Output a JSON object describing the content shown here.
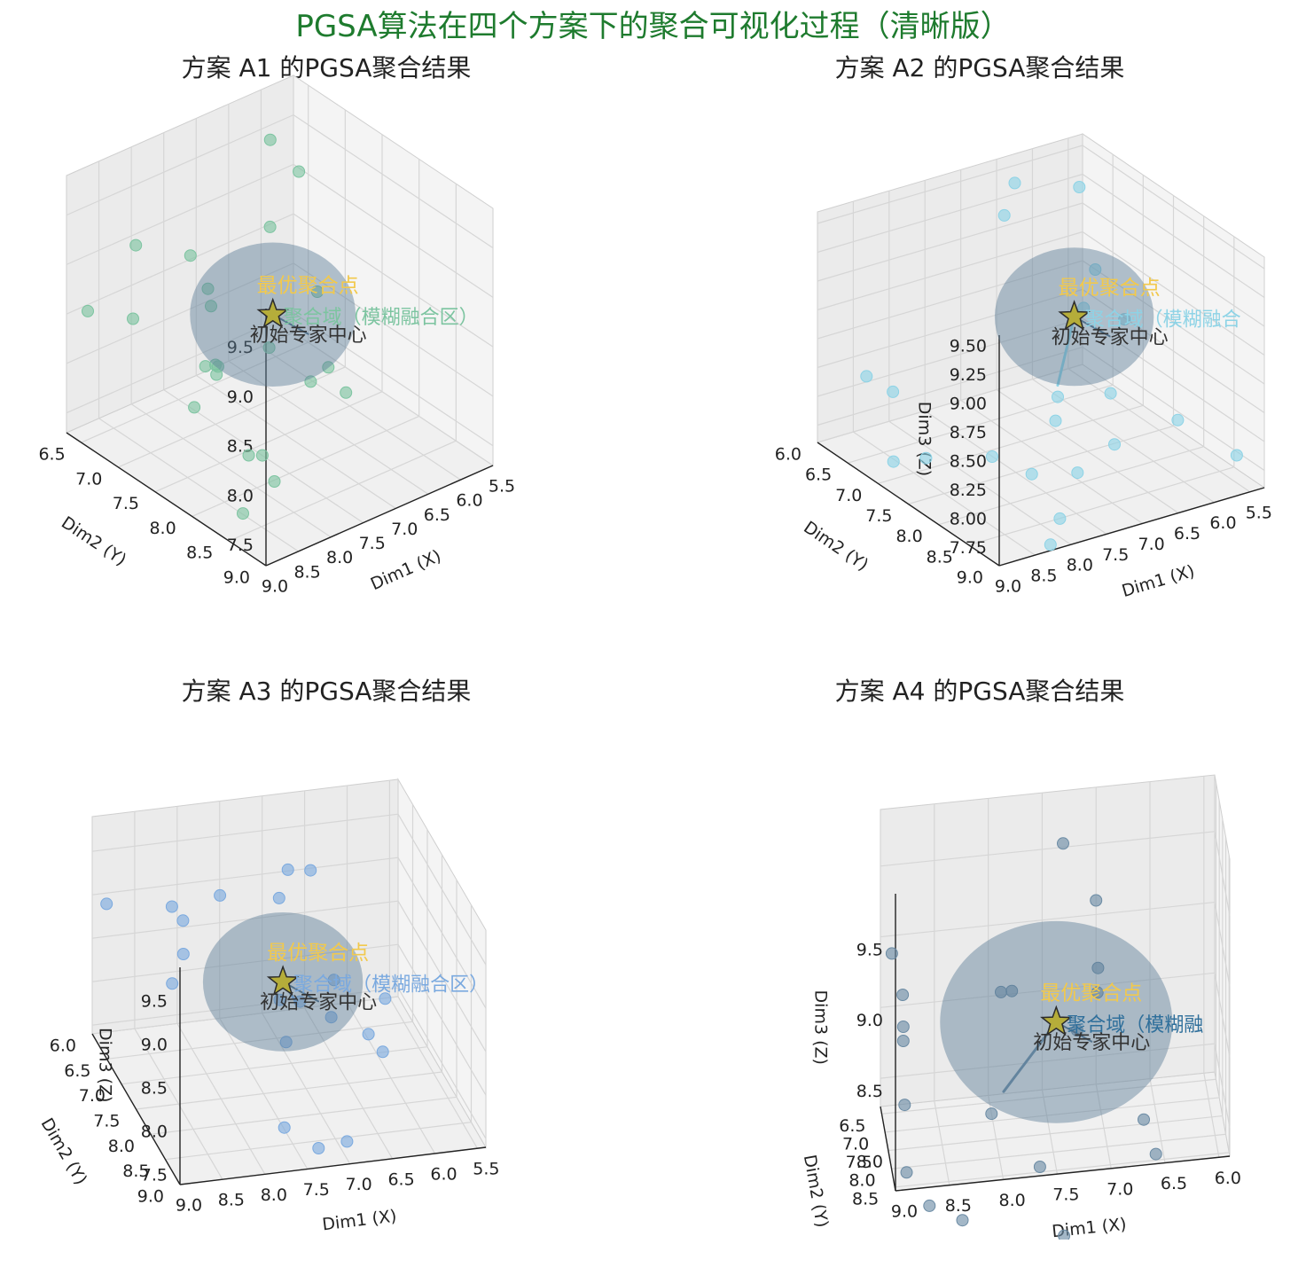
{
  "figure_title": "PGSA算法在四个方案下的聚合可视化过程（清晰版）",
  "chart_data": [
    {
      "type": "scatter",
      "title": "方案 A1 的PGSA聚合结果",
      "xlabel": "Dim1 (X)",
      "ylabel": "Dim2 (Y)",
      "zlabel": "",
      "xlim": [
        5.5,
        9.0
      ],
      "ylim": [
        6.3,
        9.0
      ],
      "zlim": [
        7.3,
        9.9
      ],
      "xticks": [
        "5.5",
        "6.0",
        "6.5",
        "7.0",
        "7.5",
        "8.0",
        "8.5",
        "9.0"
      ],
      "yticks": [
        "6.5",
        "7.0",
        "7.5",
        "8.0",
        "8.5",
        "9.0"
      ],
      "zticks": [
        "7.5",
        "8.0",
        "8.5",
        "9.0",
        "9.5"
      ],
      "color": "#7cc4a0",
      "points": [
        [
          6.2,
          6.6,
          9.6
        ],
        [
          6.1,
          6.9,
          9.4
        ],
        [
          8.5,
          6.8,
          9.3
        ],
        [
          8.0,
          7.1,
          9.2
        ],
        [
          7.0,
          7.3,
          9.3
        ],
        [
          8.3,
          7.6,
          9.2
        ],
        [
          6.5,
          7.5,
          8.6
        ],
        [
          6.9,
          8.0,
          8.2
        ],
        [
          7.4,
          8.2,
          8.3
        ],
        [
          8.6,
          8.0,
          8.7
        ],
        [
          9.0,
          7.2,
          8.9
        ],
        [
          8.6,
          8.6,
          8.1
        ],
        [
          8.3,
          8.5,
          7.7
        ],
        [
          8.9,
          8.6,
          7.6
        ],
        [
          6.8,
          6.4,
          7.3
        ],
        [
          7.6,
          6.8,
          7.4
        ],
        [
          7.2,
          6.6,
          7.6
        ],
        [
          7.9,
          7.8,
          7.5
        ],
        [
          6.9,
          7.2,
          8.0
        ],
        [
          7.5,
          7.0,
          7.9
        ],
        [
          6.4,
          7.8,
          7.7
        ],
        [
          8.9,
          6.5,
          8.6
        ],
        [
          7.0,
          6.5,
          8.1
        ]
      ],
      "optimal": [
        7.3,
        7.6,
        8.65
      ],
      "initial_center": [
        7.1,
        7.4,
        8.5
      ],
      "domain_radius": 0.28,
      "label_optimal": "最优聚合点",
      "label_domain": "聚合域（模糊融合区）",
      "label_center": "初始专家中心",
      "view": {
        "elev": 20,
        "azim": 40
      }
    },
    {
      "type": "scatter",
      "title": "方案 A2 的PGSA聚合结果",
      "xlabel": "Dim1 (X)",
      "ylabel": "Dim2 (Y)",
      "zlabel": "Dim3 (Z)",
      "xlim": [
        5.3,
        9.0
      ],
      "ylim": [
        6.0,
        9.0
      ],
      "zlim": [
        7.6,
        9.6
      ],
      "xticks": [
        "5.5",
        "6.0",
        "6.5",
        "7.0",
        "7.5",
        "8.0",
        "8.5",
        "9.0"
      ],
      "yticks": [
        "6.0",
        "6.5",
        "7.0",
        "7.5",
        "8.0",
        "8.5",
        "9.0"
      ],
      "zticks": [
        "7.75",
        "8.00",
        "8.25",
        "8.50",
        "8.75",
        "9.00",
        "9.25",
        "9.50"
      ],
      "color": "#8dd3e6",
      "points": [
        [
          6.5,
          6.3,
          9.5
        ],
        [
          6.9,
          6.6,
          9.4
        ],
        [
          5.6,
          6.3,
          9.3
        ],
        [
          6.3,
          7.2,
          8.7
        ],
        [
          5.8,
          6.8,
          8.8
        ],
        [
          8.4,
          6.1,
          8.1
        ],
        [
          8.2,
          6.3,
          8.0
        ],
        [
          7.2,
          7.8,
          8.1
        ],
        [
          7.0,
          7.6,
          8.2
        ],
        [
          6.6,
          8.0,
          8.3
        ],
        [
          7.4,
          8.4,
          7.9
        ],
        [
          7.7,
          8.0,
          7.8
        ],
        [
          8.0,
          7.7,
          7.9
        ],
        [
          8.5,
          7.2,
          7.8
        ],
        [
          7.9,
          8.7,
          7.7
        ],
        [
          6.8,
          8.3,
          8.0
        ],
        [
          6.0,
          8.4,
          8.1
        ],
        [
          5.6,
          8.9,
          7.9
        ],
        [
          8.7,
          6.9,
          7.7
        ],
        [
          8.2,
          8.9,
          7.6
        ],
        [
          5.9,
          7.4,
          8.6
        ]
      ],
      "optimal": [
        6.6,
        7.4,
        8.75
      ],
      "initial_center": [
        7.0,
        7.6,
        8.3
      ],
      "domain_radius": 0.3,
      "label_optimal": "最优聚合点",
      "label_domain": "聚合域（模糊融合",
      "label_center": "初始专家中心",
      "view": {
        "elev": 25,
        "azim": 35
      }
    },
    {
      "type": "scatter",
      "title": "方案 A3 的PGSA聚合结果",
      "xlabel": "Dim1 (X)",
      "ylabel": "Dim2 (Y)",
      "zlabel": "Dim3 (Z)",
      "xlim": [
        5.4,
        9.0
      ],
      "ylim": [
        6.0,
        9.0
      ],
      "zlim": [
        7.4,
        9.9
      ],
      "xticks": [
        "5.5",
        "6.0",
        "6.5",
        "7.0",
        "7.5",
        "8.0",
        "8.5",
        "9.0"
      ],
      "yticks": [
        "6.0",
        "6.5",
        "7.0",
        "7.5",
        "8.0",
        "8.5",
        "9.0"
      ],
      "zticks": [
        "7.5",
        "8.0",
        "8.5",
        "9.0",
        "9.5"
      ],
      "color": "#7aa9df",
      "points": [
        [
          8.9,
          6.2,
          9.0
        ],
        [
          8.2,
          6.4,
          9.0
        ],
        [
          8.0,
          6.2,
          8.7
        ],
        [
          8.1,
          6.5,
          8.5
        ],
        [
          8.3,
          6.7,
          8.3
        ],
        [
          7.6,
          6.3,
          9.0
        ],
        [
          6.8,
          6.3,
          9.2
        ],
        [
          6.5,
          6.2,
          9.1
        ],
        [
          6.8,
          6.0,
          8.7
        ],
        [
          6.9,
          7.0,
          8.1
        ],
        [
          6.6,
          7.2,
          8.0
        ],
        [
          7.2,
          7.4,
          7.9
        ],
        [
          6.3,
          7.6,
          8.0
        ],
        [
          6.0,
          7.3,
          8.2
        ],
        [
          6.2,
          7.8,
          7.9
        ],
        [
          7.6,
          8.5,
          7.6
        ],
        [
          7.3,
          8.8,
          7.5
        ],
        [
          7.0,
          8.9,
          7.6
        ],
        [
          7.0,
          6.6,
          7.9
        ],
        [
          6.5,
          7.0,
          8.3
        ]
      ],
      "optimal": [
        7.1,
        7.0,
        8.35
      ],
      "initial_center": [
        7.0,
        7.2,
        8.2
      ],
      "domain_radius": 0.32,
      "label_optimal": "最优聚合点",
      "label_domain": "聚合域（模糊融合区）",
      "label_center": "初始专家中心",
      "view": {
        "elev": 20,
        "azim": 75
      }
    },
    {
      "type": "scatter",
      "title": "方案 A4 的PGSA聚合结果",
      "xlabel": "Dim1 (X)",
      "ylabel": "Dim2 (Y)",
      "zlabel": "Dim3 (Z)",
      "xlim": [
        5.9,
        9.0
      ],
      "ylim": [
        6.3,
        8.6
      ],
      "zlim": [
        7.8,
        9.9
      ],
      "xticks": [
        "6.0",
        "6.5",
        "7.0",
        "7.5",
        "8.0",
        "8.5",
        "9.0"
      ],
      "yticks": [
        "6.5",
        "7.0",
        "7.5",
        "8.0",
        "8.5"
      ],
      "zticks": [
        "8.0",
        "8.5",
        "9.0",
        "9.5"
      ],
      "color": "#6b8ba4",
      "points": [
        [
          7.3,
          6.2,
          9.5
        ],
        [
          7.0,
          6.3,
          9.1
        ],
        [
          8.9,
          6.4,
          8.9
        ],
        [
          8.8,
          6.4,
          8.6
        ],
        [
          8.8,
          6.5,
          8.4
        ],
        [
          8.8,
          6.5,
          8.3
        ],
        [
          8.8,
          6.7,
          7.9
        ],
        [
          8.8,
          7.0,
          7.5
        ],
        [
          8.6,
          7.2,
          7.3
        ],
        [
          8.3,
          7.3,
          7.2
        ],
        [
          8.0,
          6.8,
          7.8
        ],
        [
          7.9,
          6.6,
          8.6
        ],
        [
          7.8,
          6.6,
          8.6
        ],
        [
          7.0,
          6.5,
          8.5
        ],
        [
          7.0,
          6.6,
          8.7
        ],
        [
          6.6,
          7.0,
          7.7
        ],
        [
          6.5,
          7.2,
          7.5
        ],
        [
          7.4,
          8.0,
          7.2
        ],
        [
          7.6,
          7.6,
          7.6
        ],
        [
          7.2,
          6.7,
          8.3
        ],
        [
          8.9,
          7.6,
          7.0
        ]
      ],
      "optimal": [
        7.4,
        6.8,
        8.4
      ],
      "initial_center": [
        7.9,
        7.0,
        8.0
      ],
      "domain_radius": 0.34,
      "label_optimal": "最优聚合点",
      "label_domain": "聚合域（模糊融",
      "label_center": "初始专家中心",
      "view": {
        "elev": 12,
        "azim": 85
      }
    }
  ]
}
